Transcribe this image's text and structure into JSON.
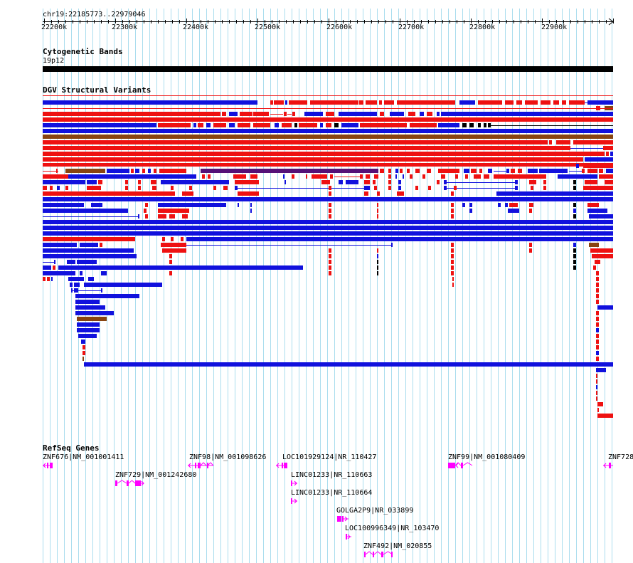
{
  "region_label": "chr19:22185773..22979046",
  "ruler": {
    "ticks": [
      "22200k",
      "22300k",
      "22400k",
      "22500k",
      "22600k",
      "22700k",
      "22800k",
      "22900k"
    ]
  },
  "tracks": {
    "cytoband": {
      "title": "Cytogenetic Bands",
      "band": "19p12"
    },
    "dgv": {
      "title": "DGV Structural Variants"
    },
    "refseq": {
      "title": "RefSeq Genes"
    }
  },
  "genes": [
    {
      "label": "ZNF676|NM_001001411"
    },
    {
      "label": "ZNF98|NM_001098626"
    },
    {
      "label": "LOC101929124|NR_110427"
    },
    {
      "label": "ZNF99|NM_001080409"
    },
    {
      "label": "ZNF728"
    },
    {
      "label": "ZNF729|NM_001242680"
    },
    {
      "label": "LINC01233|NR_110663"
    },
    {
      "label": "LINC01233|NR_110664"
    },
    {
      "label": "GOLGA2P9|NR_033899"
    },
    {
      "label": "LOC100996349|NR_103470"
    },
    {
      "label": "ZNF492|NM_020855"
    }
  ],
  "colors": {
    "gain": "#ee1111",
    "loss": "#1111dd",
    "inversion": "#884411",
    "complex": "#551177",
    "gene": "#ff00ff",
    "grid": "#aaddee",
    "band": "#000000"
  }
}
